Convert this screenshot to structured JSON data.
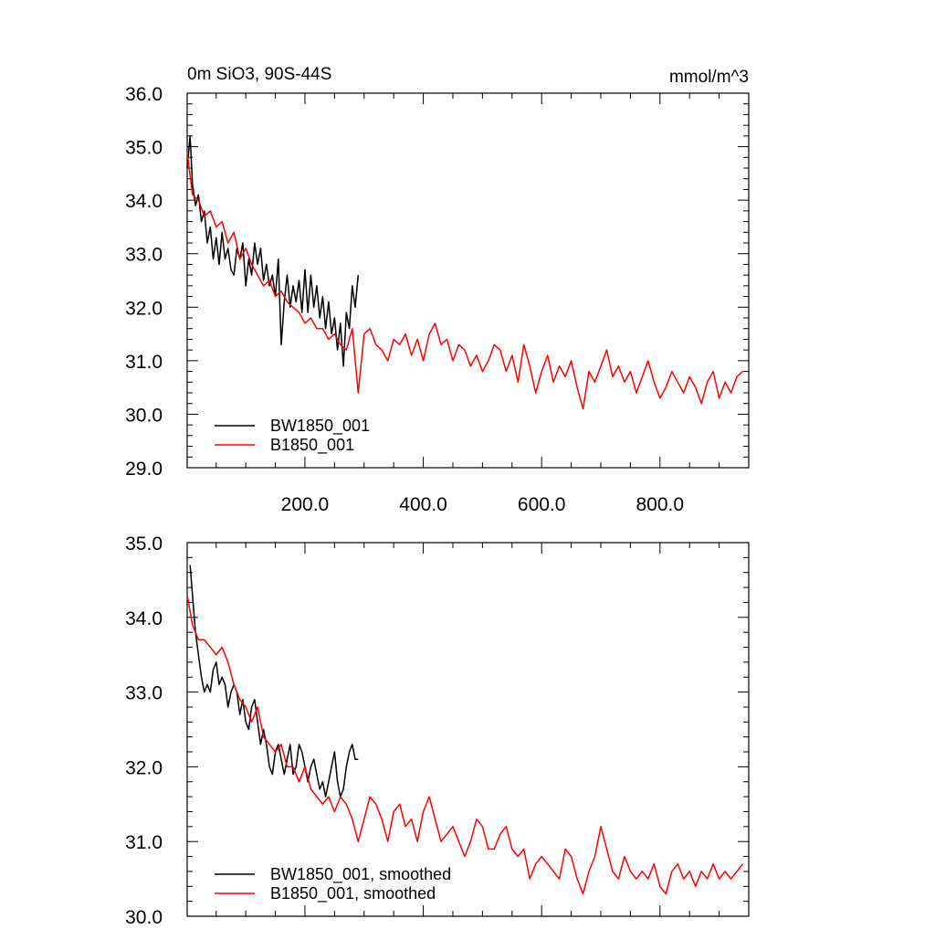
{
  "chart_data": [
    {
      "type": "line",
      "title": "0m SiO3, 90S-44S",
      "units": "mmol/m^3",
      "xlabel": "",
      "ylabel": "",
      "xlim": [
        1,
        950
      ],
      "ylim": [
        29.0,
        36.0
      ],
      "yticks": [
        "29.0",
        "30.0",
        "31.0",
        "32.0",
        "33.0",
        "34.0",
        "35.0",
        "36.0"
      ],
      "xticks": [
        "200.0",
        "400.0",
        "600.0",
        "800.0"
      ],
      "legend_position": "bottom-left",
      "grid": false,
      "series": [
        {
          "name": "BW1850_001",
          "color": "#000000",
          "x": [
            1,
            6,
            10,
            15,
            20,
            25,
            30,
            35,
            40,
            45,
            50,
            55,
            60,
            65,
            70,
            75,
            80,
            85,
            90,
            95,
            100,
            105,
            110,
            115,
            120,
            125,
            130,
            135,
            140,
            145,
            150,
            155,
            160,
            165,
            170,
            175,
            180,
            185,
            190,
            195,
            200,
            205,
            210,
            215,
            220,
            225,
            230,
            235,
            240,
            245,
            250,
            255,
            260,
            265,
            270,
            275,
            280,
            285,
            290
          ],
          "values": [
            34.6,
            35.2,
            34.3,
            33.9,
            34.1,
            33.6,
            33.8,
            33.2,
            33.5,
            32.9,
            33.3,
            32.8,
            33.4,
            32.9,
            33.1,
            32.7,
            32.6,
            33.1,
            32.9,
            33.2,
            32.4,
            32.9,
            32.6,
            33.2,
            32.8,
            33.1,
            32.5,
            32.8,
            32.4,
            32.6,
            32.2,
            32.9,
            31.3,
            32.1,
            32.6,
            32.0,
            32.4,
            32.1,
            32.5,
            31.9,
            32.7,
            31.9,
            32.6,
            32.0,
            32.4,
            31.8,
            32.2,
            31.6,
            32.1,
            31.5,
            31.8,
            31.2,
            31.7,
            30.9,
            31.9,
            31.6,
            32.4,
            32.0,
            32.6
          ]
        },
        {
          "name": "B1850_001",
          "color": "#ff0000",
          "x": [
            1,
            10,
            20,
            30,
            40,
            50,
            60,
            70,
            80,
            90,
            100,
            110,
            120,
            130,
            140,
            150,
            160,
            170,
            180,
            190,
            200,
            210,
            220,
            230,
            240,
            250,
            260,
            270,
            280,
            290,
            300,
            310,
            320,
            330,
            340,
            350,
            360,
            370,
            380,
            390,
            400,
            410,
            420,
            430,
            440,
            450,
            460,
            470,
            480,
            490,
            500,
            510,
            520,
            530,
            540,
            550,
            560,
            570,
            580,
            590,
            600,
            610,
            620,
            630,
            640,
            650,
            660,
            670,
            680,
            690,
            700,
            710,
            720,
            730,
            740,
            750,
            760,
            770,
            780,
            790,
            800,
            810,
            820,
            830,
            840,
            850,
            860,
            870,
            880,
            890,
            900,
            910,
            920,
            930,
            940
          ],
          "values": [
            34.9,
            34.1,
            34.0,
            33.7,
            33.8,
            33.5,
            33.6,
            33.2,
            33.4,
            32.9,
            33.1,
            32.8,
            32.6,
            32.4,
            32.5,
            32.2,
            32.3,
            32.1,
            32.0,
            31.9,
            31.7,
            31.8,
            31.6,
            31.6,
            31.4,
            31.5,
            31.3,
            31.2,
            31.6,
            30.4,
            31.5,
            31.6,
            31.3,
            31.2,
            31.0,
            31.4,
            31.3,
            31.5,
            31.1,
            31.4,
            31.0,
            31.5,
            31.7,
            31.3,
            31.4,
            31.0,
            31.3,
            31.2,
            30.9,
            31.1,
            30.8,
            31.0,
            31.3,
            31.2,
            30.8,
            31.1,
            30.6,
            31.3,
            30.9,
            30.4,
            30.8,
            31.1,
            30.6,
            30.9,
            30.7,
            31.0,
            30.5,
            30.1,
            30.8,
            30.6,
            30.9,
            31.2,
            30.7,
            30.9,
            30.6,
            30.8,
            30.4,
            30.7,
            31.0,
            30.6,
            30.3,
            30.5,
            30.8,
            30.6,
            30.4,
            30.7,
            30.5,
            30.2,
            30.6,
            30.8,
            30.3,
            30.6,
            30.4,
            30.7,
            30.8
          ]
        }
      ]
    },
    {
      "type": "line",
      "title": "",
      "units": "",
      "xlabel": "",
      "ylabel": "",
      "xlim": [
        1,
        950
      ],
      "ylim": [
        30.0,
        35.0
      ],
      "yticks": [
        "30.0",
        "31.0",
        "32.0",
        "33.0",
        "34.0",
        "35.0"
      ],
      "xticks": [],
      "legend_position": "bottom-left",
      "grid": false,
      "series": [
        {
          "name": "BW1850_001, smoothed",
          "color": "#000000",
          "x": [
            6,
            10,
            15,
            20,
            25,
            30,
            35,
            40,
            45,
            50,
            55,
            60,
            65,
            70,
            75,
            80,
            85,
            90,
            95,
            100,
            105,
            110,
            115,
            120,
            125,
            130,
            135,
            140,
            145,
            150,
            155,
            160,
            165,
            170,
            175,
            180,
            185,
            190,
            195,
            200,
            205,
            210,
            215,
            220,
            225,
            230,
            235,
            240,
            245,
            250,
            255,
            260,
            265,
            270,
            275,
            280,
            285,
            290
          ],
          "values": [
            34.7,
            34.3,
            33.8,
            33.5,
            33.2,
            33.0,
            33.1,
            33.0,
            33.3,
            33.4,
            33.1,
            33.2,
            33.1,
            32.8,
            33.0,
            33.1,
            33.0,
            32.7,
            32.9,
            32.6,
            32.5,
            32.8,
            32.9,
            32.6,
            32.3,
            32.5,
            32.3,
            32.0,
            31.9,
            32.2,
            32.3,
            32.1,
            31.9,
            32.1,
            32.3,
            31.9,
            32.0,
            32.3,
            32.2,
            32.0,
            31.8,
            32.0,
            32.1,
            31.9,
            31.7,
            31.8,
            31.6,
            31.8,
            32.0,
            32.2,
            31.8,
            31.6,
            31.7,
            32.0,
            32.2,
            32.3,
            32.1,
            32.1
          ]
        },
        {
          "name": "B1850_001, smoothed",
          "color": "#ff0000",
          "x": [
            1,
            10,
            20,
            30,
            40,
            50,
            60,
            70,
            80,
            90,
            100,
            110,
            120,
            130,
            140,
            150,
            160,
            170,
            180,
            190,
            200,
            210,
            220,
            230,
            240,
            250,
            260,
            270,
            280,
            290,
            300,
            310,
            320,
            330,
            340,
            350,
            360,
            370,
            380,
            390,
            400,
            410,
            420,
            430,
            440,
            450,
            460,
            470,
            480,
            490,
            500,
            510,
            520,
            530,
            540,
            550,
            560,
            570,
            580,
            590,
            600,
            610,
            620,
            630,
            640,
            650,
            660,
            670,
            680,
            690,
            700,
            710,
            720,
            730,
            740,
            750,
            760,
            770,
            780,
            790,
            800,
            810,
            820,
            830,
            840,
            850,
            860,
            870,
            880,
            890,
            900,
            910,
            920,
            930,
            940
          ],
          "values": [
            34.3,
            33.9,
            33.7,
            33.7,
            33.6,
            33.5,
            33.6,
            33.4,
            33.1,
            32.9,
            32.8,
            32.6,
            32.8,
            32.4,
            32.3,
            32.2,
            32.3,
            32.0,
            32.0,
            31.8,
            32.0,
            31.7,
            31.6,
            31.5,
            31.6,
            31.4,
            31.6,
            31.5,
            31.3,
            31.0,
            31.3,
            31.6,
            31.5,
            31.3,
            31.0,
            31.4,
            31.5,
            31.2,
            31.3,
            31.0,
            31.4,
            31.6,
            31.3,
            31.0,
            31.1,
            31.2,
            31.0,
            30.8,
            31.0,
            31.3,
            31.2,
            30.9,
            30.9,
            31.1,
            31.2,
            30.9,
            30.8,
            30.9,
            30.5,
            30.7,
            30.8,
            30.7,
            30.6,
            30.5,
            30.9,
            30.8,
            30.5,
            30.3,
            30.6,
            30.8,
            31.2,
            30.9,
            30.6,
            30.5,
            30.8,
            30.6,
            30.5,
            30.6,
            30.5,
            30.7,
            30.4,
            30.3,
            30.6,
            30.7,
            30.5,
            30.6,
            30.4,
            30.6,
            30.5,
            30.7,
            30.5,
            30.6,
            30.5,
            30.6,
            30.7
          ]
        }
      ]
    }
  ]
}
